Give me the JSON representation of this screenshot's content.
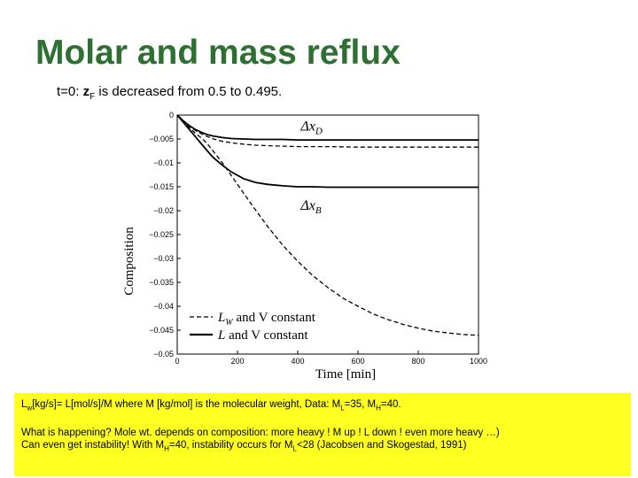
{
  "slide": {
    "title": "Molar and mass reflux",
    "subtitle_pre": "t=0: ",
    "subtitle_z": "z",
    "subtitle_sub": "F",
    "subtitle_post": " is decreased from 0.5 to 0.495."
  },
  "note": {
    "line1_a": "L",
    "line1_a_sub": "w",
    "line1_b": "[kg/s]= L[mol/s]/M where M [kg/mol] is the molecular weight, Data: M",
    "line1_c_sub": "L",
    "line1_d": "=35, M",
    "line1_e_sub": "H",
    "line1_f": "=40.",
    "line2": "What is happening? Mole wt. depends on composition: more heavy ! M up ! L down ! even more heavy …)",
    "line3_a": "Can even get instability! With M",
    "line3_a_sub": "H",
    "line3_b": "=40, instability occurs for M",
    "line3_b_sub": "L",
    "line3_c": "<28 (Jacobsen and Skogestad, 1991)"
  },
  "chart_data": {
    "type": "line",
    "xlabel": "Time [min]",
    "ylabel": "Composition",
    "xlim": [
      0,
      1000
    ],
    "ylim": [
      -0.05,
      0
    ],
    "xticks": [
      0,
      200,
      400,
      600,
      800,
      1000
    ],
    "yticks": [
      0,
      -0.005,
      -0.01,
      -0.015,
      -0.02,
      -0.025,
      -0.03,
      -0.035,
      -0.04,
      -0.045,
      -0.05
    ],
    "xtick_labels": [
      "0",
      "200",
      "400",
      "600",
      "800",
      "1000"
    ],
    "ytick_labels": [
      "0",
      "−0.005",
      "−0.01",
      "−0.015",
      "−0.02",
      "−0.025",
      "−0.03",
      "−0.035",
      "−0.04",
      "−0.045",
      "−0.05"
    ],
    "annotations": [
      {
        "text": "Δx",
        "sub": "D",
        "x": 410,
        "y": -0.0032
      },
      {
        "text": "Δx",
        "sub": "B",
        "x": 410,
        "y": -0.0198
      }
    ],
    "legend": [
      {
        "text_main": "L",
        "text_sub": "W",
        "text_rest": " and V constant",
        "style": "dashed"
      },
      {
        "text_main": "L",
        "text_sub": "",
        "text_rest": " and V constant",
        "style": "solid"
      }
    ],
    "series": [
      {
        "label": "Δx_D, L_W and V constant",
        "style": "dashed",
        "x": [
          0,
          20,
          40,
          60,
          80,
          100,
          120,
          150,
          180,
          220,
          260,
          300,
          350,
          400,
          500,
          600,
          700,
          800,
          900,
          1000
        ],
        "y": [
          0,
          -0.0012,
          -0.0023,
          -0.0032,
          -0.0039,
          -0.0045,
          -0.005,
          -0.0055,
          -0.0058,
          -0.0061,
          -0.0063,
          -0.0064,
          -0.0065,
          -0.0066,
          -0.0066,
          -0.0067,
          -0.0067,
          -0.0067,
          -0.0067,
          -0.0067
        ]
      },
      {
        "label": "Δx_D, L and V constant",
        "style": "solid",
        "x": [
          0,
          20,
          40,
          60,
          80,
          100,
          120,
          150,
          180,
          220,
          260,
          300,
          350,
          400,
          500,
          600,
          700,
          800,
          900,
          1000
        ],
        "y": [
          0,
          -0.0012,
          -0.0022,
          -0.003,
          -0.0036,
          -0.0041,
          -0.0044,
          -0.0047,
          -0.0049,
          -0.005,
          -0.0051,
          -0.0051,
          -0.0051,
          -0.0052,
          -0.0052,
          -0.0052,
          -0.0052,
          -0.0052,
          -0.0052,
          -0.0052
        ]
      },
      {
        "label": "Δx_B, L and V constant",
        "style": "solid",
        "x": [
          0,
          20,
          40,
          60,
          80,
          100,
          120,
          150,
          180,
          220,
          260,
          300,
          350,
          400,
          450,
          500,
          600,
          700,
          800,
          900,
          1000
        ],
        "y": [
          0,
          -0.0015,
          -0.003,
          -0.0045,
          -0.006,
          -0.0075,
          -0.0089,
          -0.0105,
          -0.0119,
          -0.0133,
          -0.0141,
          -0.0145,
          -0.0148,
          -0.015,
          -0.015,
          -0.0151,
          -0.0151,
          -0.0151,
          -0.0151,
          -0.0151,
          -0.0151
        ]
      },
      {
        "label": "Δx_B, L_W and V constant",
        "style": "dashed",
        "x": [
          0,
          20,
          40,
          60,
          80,
          100,
          150,
          200,
          250,
          300,
          350,
          400,
          450,
          500,
          550,
          600,
          650,
          700,
          750,
          800,
          850,
          900,
          950,
          1000
        ],
        "y": [
          0,
          -0.0013,
          -0.0026,
          -0.0038,
          -0.0048,
          -0.006,
          -0.01,
          -0.0145,
          -0.019,
          -0.0233,
          -0.0272,
          -0.0306,
          -0.0336,
          -0.0361,
          -0.0383,
          -0.04,
          -0.0416,
          -0.0428,
          -0.0438,
          -0.0446,
          -0.0452,
          -0.0456,
          -0.0459,
          -0.0461
        ]
      }
    ]
  }
}
